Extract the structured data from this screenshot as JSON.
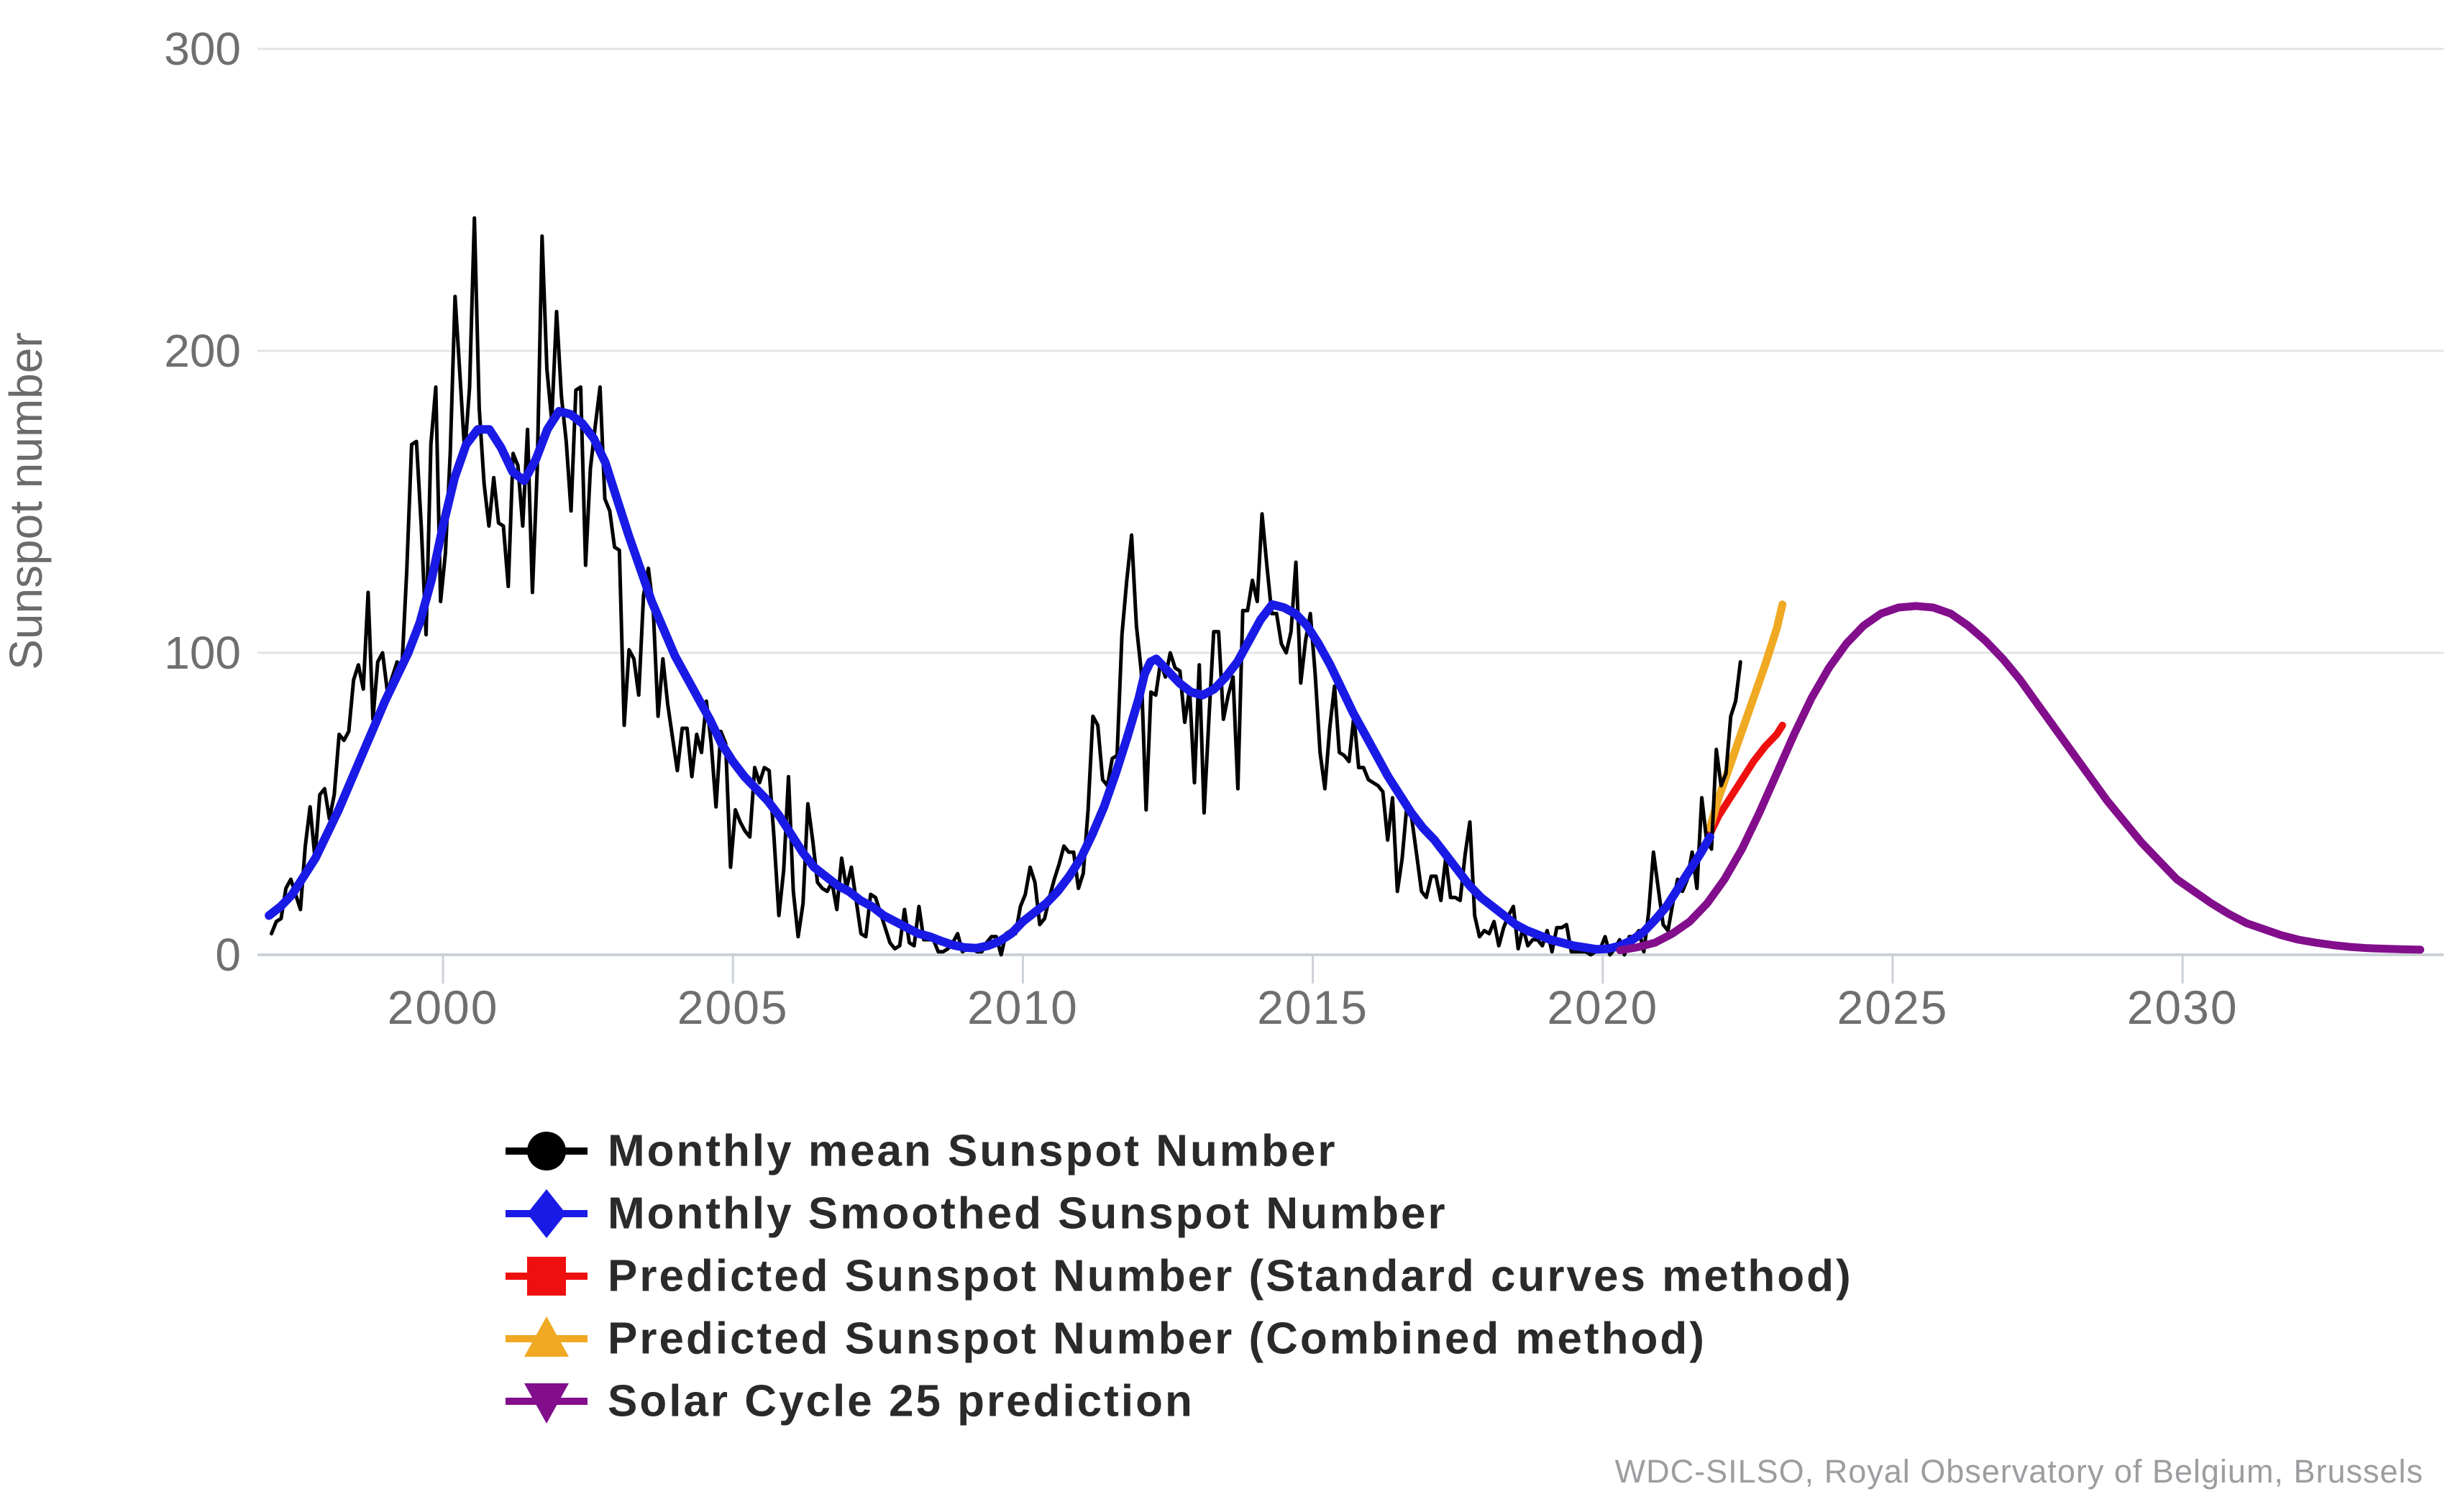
{
  "page": {
    "background": "#ffffff"
  },
  "attribution": "WDC-SILSO, Royal Observatory of Belgium, Brussels",
  "chart_data": {
    "type": "line",
    "title": "",
    "xlabel": "",
    "ylabel": "Sunspot number",
    "xlim": [
      1996.8,
      2034.5
    ],
    "ylim": [
      0,
      300
    ],
    "xticks": [
      2000,
      2005,
      2010,
      2015,
      2020,
      2025,
      2030
    ],
    "yticks": [
      0,
      100,
      200,
      300
    ],
    "grid": "horizontal",
    "legend_position": "bottom-left",
    "series": [
      {
        "name": "Monthly mean Sunspot Number",
        "color": "#000000",
        "marker": "circle",
        "width": 5,
        "monthly": {
          "1997": [
            7,
            11,
            12,
            22,
            25,
            20,
            15,
            36,
            49,
            32,
            53,
            55
          ],
          "1998": [
            45,
            53,
            73,
            71,
            74,
            91,
            96,
            88,
            120,
            78,
            97,
            100
          ],
          "1999": [
            87,
            92,
            97,
            95,
            127,
            169,
            170,
            142,
            106,
            169,
            188,
            117
          ],
          "2000": [
            133,
            166,
            218,
            192,
            166,
            188,
            244,
            181,
            156,
            142,
            158,
            143
          ],
          "2001": [
            142,
            122,
            166,
            162,
            142,
            174,
            120,
            161,
            238,
            194,
            177,
            213
          ],
          "2002": [
            185,
            170,
            147,
            187,
            188,
            129,
            161,
            175,
            188,
            151,
            147,
            135
          ],
          "2003": [
            134,
            76,
            101,
            98,
            86,
            119,
            128,
            115,
            79,
            98,
            83,
            72
          ],
          "2004": [
            61,
            75,
            75,
            59,
            73,
            67,
            84,
            70,
            49,
            74,
            70,
            29
          ],
          "2005": [
            48,
            44,
            41,
            39,
            62,
            57,
            62,
            61,
            39,
            13,
            28,
            59
          ],
          "2006": [
            21,
            6,
            17,
            50,
            38,
            24,
            22,
            21,
            24,
            15,
            32,
            22
          ],
          "2007": [
            29,
            18,
            7,
            6,
            20,
            19,
            14,
            9,
            4,
            2,
            3,
            15
          ],
          "2008": [
            4,
            3,
            16,
            5,
            5,
            5,
            1,
            1,
            2,
            4,
            7,
            1
          ],
          "2009": [
            2,
            2,
            1,
            1,
            4,
            6,
            6,
            0,
            7,
            8,
            7,
            16
          ],
          "2010": [
            20,
            29,
            24,
            10,
            12,
            19,
            25,
            30,
            36,
            34,
            34,
            22
          ],
          "2011": [
            27,
            48,
            79,
            76,
            58,
            56,
            65,
            66,
            106,
            124,
            139,
            109
          ],
          "2012": [
            94,
            48,
            87,
            86,
            97,
            92,
            100,
            95,
            94,
            77,
            88,
            57
          ],
          "2013": [
            96,
            47,
            78,
            107,
            107,
            78,
            86,
            92,
            55,
            114,
            114,
            124
          ],
          "2014": [
            117,
            146,
            129,
            113,
            113,
            103,
            100,
            107,
            130,
            90,
            104,
            113
          ],
          "2015": [
            93,
            67,
            55,
            75,
            89,
            67,
            66,
            64,
            79,
            62,
            62,
            58
          ],
          "2016": [
            57,
            56,
            54,
            38,
            52,
            21,
            32,
            50,
            45,
            33,
            21,
            19
          ],
          "2017": [
            26,
            26,
            18,
            32,
            19,
            19,
            18,
            33,
            44,
            13,
            6,
            8
          ],
          "2018": [
            7,
            11,
            3,
            9,
            13,
            16,
            2,
            9,
            3,
            5,
            5,
            3
          ],
          "2019": [
            8,
            1,
            9,
            9,
            10,
            1,
            1,
            1,
            1,
            0,
            1,
            2
          ],
          "2020": [
            6,
            0,
            2,
            5,
            0,
            6,
            6,
            8,
            1,
            14,
            34,
            22
          ],
          "2021": [
            10,
            8,
            17,
            25,
            21,
            25,
            34,
            22,
            52,
            38,
            35,
            68
          ],
          "2022": [
            56,
            60,
            79,
            84,
            97
          ]
        }
      },
      {
        "name": "Monthly Smoothed Sunspot Number",
        "color": "#1a1ae6",
        "marker": "diamond",
        "width": 12,
        "points": [
          [
            1997.0,
            13
          ],
          [
            1997.2,
            16
          ],
          [
            1997.4,
            20
          ],
          [
            1997.6,
            26
          ],
          [
            1997.8,
            32
          ],
          [
            1998.0,
            40
          ],
          [
            1998.2,
            48
          ],
          [
            1998.4,
            57
          ],
          [
            1998.6,
            66
          ],
          [
            1998.8,
            75
          ],
          [
            1999.0,
            84
          ],
          [
            1999.2,
            92
          ],
          [
            1999.4,
            100
          ],
          [
            1999.6,
            110
          ],
          [
            1999.8,
            124
          ],
          [
            2000.0,
            142
          ],
          [
            2000.2,
            158
          ],
          [
            2000.4,
            169
          ],
          [
            2000.6,
            174
          ],
          [
            2000.8,
            174
          ],
          [
            2001.0,
            168
          ],
          [
            2001.2,
            160
          ],
          [
            2001.4,
            157
          ],
          [
            2001.6,
            164
          ],
          [
            2001.8,
            174
          ],
          [
            2002.0,
            180
          ],
          [
            2002.2,
            179
          ],
          [
            2002.4,
            176
          ],
          [
            2002.6,
            171
          ],
          [
            2002.8,
            163
          ],
          [
            2003.0,
            151
          ],
          [
            2003.2,
            139
          ],
          [
            2003.4,
            128
          ],
          [
            2003.6,
            117
          ],
          [
            2003.8,
            108
          ],
          [
            2004.0,
            99
          ],
          [
            2004.2,
            92
          ],
          [
            2004.4,
            85
          ],
          [
            2004.6,
            78
          ],
          [
            2004.8,
            70
          ],
          [
            2005.0,
            64
          ],
          [
            2005.2,
            59
          ],
          [
            2005.4,
            55
          ],
          [
            2005.6,
            51
          ],
          [
            2005.8,
            46
          ],
          [
            2006.0,
            40
          ],
          [
            2006.2,
            34
          ],
          [
            2006.4,
            29
          ],
          [
            2006.6,
            26
          ],
          [
            2006.8,
            23
          ],
          [
            2007.0,
            21
          ],
          [
            2007.2,
            18
          ],
          [
            2007.4,
            16
          ],
          [
            2007.6,
            13
          ],
          [
            2007.8,
            11
          ],
          [
            2008.0,
            9
          ],
          [
            2008.2,
            7
          ],
          [
            2008.4,
            6
          ],
          [
            2008.6,
            4.5
          ],
          [
            2008.8,
            3.2
          ],
          [
            2009.0,
            2.4
          ],
          [
            2009.2,
            2.2
          ],
          [
            2009.4,
            3
          ],
          [
            2009.6,
            4.5
          ],
          [
            2009.8,
            7
          ],
          [
            2010.0,
            11
          ],
          [
            2010.2,
            14
          ],
          [
            2010.4,
            17
          ],
          [
            2010.6,
            21
          ],
          [
            2010.8,
            26
          ],
          [
            2011.0,
            32
          ],
          [
            2011.2,
            40
          ],
          [
            2011.4,
            49
          ],
          [
            2011.6,
            60
          ],
          [
            2011.8,
            72
          ],
          [
            2012.0,
            85
          ],
          [
            2012.1,
            93
          ],
          [
            2012.2,
            97
          ],
          [
            2012.3,
            98
          ],
          [
            2012.5,
            94
          ],
          [
            2012.7,
            90
          ],
          [
            2012.9,
            87
          ],
          [
            2013.1,
            86
          ],
          [
            2013.3,
            88
          ],
          [
            2013.5,
            92
          ],
          [
            2013.7,
            97
          ],
          [
            2013.9,
            104
          ],
          [
            2014.1,
            111
          ],
          [
            2014.3,
            116
          ],
          [
            2014.5,
            115
          ],
          [
            2014.7,
            113
          ],
          [
            2014.9,
            109
          ],
          [
            2015.1,
            103
          ],
          [
            2015.3,
            96
          ],
          [
            2015.5,
            88
          ],
          [
            2015.7,
            80
          ],
          [
            2015.9,
            73
          ],
          [
            2016.1,
            66
          ],
          [
            2016.3,
            59
          ],
          [
            2016.5,
            53
          ],
          [
            2016.7,
            47
          ],
          [
            2016.9,
            42
          ],
          [
            2017.1,
            38
          ],
          [
            2017.3,
            33
          ],
          [
            2017.5,
            28
          ],
          [
            2017.7,
            23
          ],
          [
            2017.9,
            19
          ],
          [
            2018.1,
            16
          ],
          [
            2018.3,
            13
          ],
          [
            2018.5,
            10
          ],
          [
            2018.7,
            8
          ],
          [
            2018.9,
            6.5
          ],
          [
            2019.1,
            5
          ],
          [
            2019.3,
            4
          ],
          [
            2019.5,
            3
          ],
          [
            2019.7,
            2.4
          ],
          [
            2019.9,
            1.8
          ],
          [
            2020.1,
            2
          ],
          [
            2020.3,
            3
          ],
          [
            2020.5,
            4.8
          ],
          [
            2020.7,
            7.5
          ],
          [
            2020.9,
            11.5
          ],
          [
            2021.1,
            16
          ],
          [
            2021.3,
            22
          ],
          [
            2021.5,
            28
          ],
          [
            2021.7,
            34
          ],
          [
            2021.85,
            39
          ]
        ]
      },
      {
        "name": "Predicted Sunspot Number (Standard curves method)",
        "color": "#ee0f0f",
        "marker": "square",
        "width": 10,
        "points": [
          [
            2021.85,
            40
          ],
          [
            2022.0,
            46
          ],
          [
            2022.2,
            52
          ],
          [
            2022.4,
            58
          ],
          [
            2022.6,
            64
          ],
          [
            2022.8,
            69
          ],
          [
            2023.0,
            73
          ],
          [
            2023.1,
            76
          ]
        ]
      },
      {
        "name": "Predicted Sunspot Number (Combined method)",
        "color": "#f0a922",
        "marker": "triangle-up",
        "width": 11,
        "points": [
          [
            2021.85,
            42
          ],
          [
            2022.0,
            52
          ],
          [
            2022.2,
            63
          ],
          [
            2022.4,
            74
          ],
          [
            2022.6,
            85
          ],
          [
            2022.8,
            96
          ],
          [
            2023.0,
            108
          ],
          [
            2023.1,
            116
          ]
        ]
      },
      {
        "name": "Solar Cycle 25 prediction",
        "color": "#820e8c",
        "marker": "triangle-down",
        "width": 11,
        "points": [
          [
            2020.3,
            1.5
          ],
          [
            2020.6,
            2.5
          ],
          [
            2020.9,
            4
          ],
          [
            2021.2,
            7
          ],
          [
            2021.5,
            11
          ],
          [
            2021.8,
            17
          ],
          [
            2022.1,
            25
          ],
          [
            2022.4,
            35
          ],
          [
            2022.7,
            47
          ],
          [
            2023.0,
            60
          ],
          [
            2023.3,
            73
          ],
          [
            2023.6,
            85
          ],
          [
            2023.9,
            95
          ],
          [
            2024.2,
            103
          ],
          [
            2024.5,
            109
          ],
          [
            2024.8,
            113
          ],
          [
            2025.1,
            115
          ],
          [
            2025.4,
            115.5
          ],
          [
            2025.7,
            115
          ],
          [
            2026.0,
            113
          ],
          [
            2026.3,
            109
          ],
          [
            2026.6,
            104
          ],
          [
            2026.9,
            98
          ],
          [
            2027.2,
            91
          ],
          [
            2027.5,
            83
          ],
          [
            2027.8,
            75
          ],
          [
            2028.1,
            67
          ],
          [
            2028.4,
            59
          ],
          [
            2028.7,
            51
          ],
          [
            2029.0,
            44
          ],
          [
            2029.3,
            37
          ],
          [
            2029.6,
            31
          ],
          [
            2029.9,
            25
          ],
          [
            2030.2,
            21
          ],
          [
            2030.5,
            17
          ],
          [
            2030.8,
            13.5
          ],
          [
            2031.1,
            10.5
          ],
          [
            2031.4,
            8.5
          ],
          [
            2031.7,
            6.5
          ],
          [
            2032.0,
            5
          ],
          [
            2032.3,
            4
          ],
          [
            2032.6,
            3.2
          ],
          [
            2032.9,
            2.6
          ],
          [
            2033.2,
            2.2
          ],
          [
            2033.5,
            2
          ],
          [
            2033.8,
            1.8
          ],
          [
            2034.1,
            1.7
          ]
        ]
      }
    ]
  }
}
